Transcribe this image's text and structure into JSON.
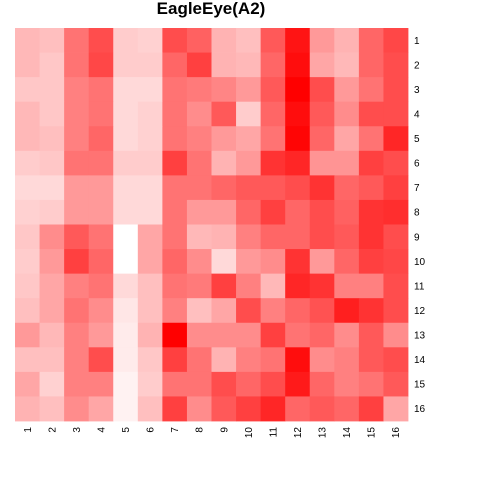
{
  "chart_data": {
    "type": "heatmap",
    "title": "EagleEye(A2)",
    "xlabel": "",
    "ylabel": "",
    "x_labels": [
      "1",
      "2",
      "3",
      "4",
      "5",
      "6",
      "7",
      "8",
      "9",
      "10",
      "11",
      "12",
      "13",
      "14",
      "15",
      "16"
    ],
    "y_labels": [
      "1",
      "2",
      "3",
      "4",
      "5",
      "6",
      "7",
      "8",
      "9",
      "10",
      "11",
      "12",
      "13",
      "14",
      "15",
      "16"
    ],
    "color_scale": {
      "low": "#ffffff",
      "high": "#ff0000"
    },
    "value_range": [
      0,
      1
    ],
    "values": [
      [
        0.28,
        0.25,
        0.55,
        0.7,
        0.2,
        0.18,
        0.7,
        0.62,
        0.3,
        0.25,
        0.65,
        0.92,
        0.4,
        0.3,
        0.6,
        0.72
      ],
      [
        0.28,
        0.22,
        0.55,
        0.72,
        0.2,
        0.2,
        0.6,
        0.75,
        0.3,
        0.28,
        0.6,
        0.95,
        0.35,
        0.28,
        0.6,
        0.7
      ],
      [
        0.22,
        0.22,
        0.5,
        0.55,
        0.15,
        0.15,
        0.55,
        0.52,
        0.48,
        0.4,
        0.65,
        1.0,
        0.7,
        0.4,
        0.55,
        0.7
      ],
      [
        0.28,
        0.22,
        0.5,
        0.55,
        0.15,
        0.18,
        0.55,
        0.45,
        0.65,
        0.2,
        0.6,
        0.95,
        0.65,
        0.45,
        0.7,
        0.7
      ],
      [
        0.28,
        0.25,
        0.5,
        0.6,
        0.15,
        0.18,
        0.55,
        0.5,
        0.4,
        0.35,
        0.55,
        0.98,
        0.6,
        0.35,
        0.55,
        0.85
      ],
      [
        0.2,
        0.22,
        0.55,
        0.55,
        0.2,
        0.2,
        0.75,
        0.55,
        0.3,
        0.4,
        0.8,
        0.85,
        0.42,
        0.42,
        0.75,
        0.7
      ],
      [
        0.15,
        0.15,
        0.4,
        0.4,
        0.15,
        0.15,
        0.55,
        0.55,
        0.6,
        0.65,
        0.65,
        0.7,
        0.8,
        0.6,
        0.65,
        0.75
      ],
      [
        0.18,
        0.2,
        0.4,
        0.4,
        0.15,
        0.15,
        0.55,
        0.4,
        0.4,
        0.6,
        0.75,
        0.6,
        0.7,
        0.62,
        0.8,
        0.82
      ],
      [
        0.22,
        0.45,
        0.65,
        0.55,
        0.0,
        0.35,
        0.55,
        0.28,
        0.3,
        0.5,
        0.6,
        0.6,
        0.7,
        0.65,
        0.8,
        0.7
      ],
      [
        0.2,
        0.4,
        0.75,
        0.6,
        0.0,
        0.35,
        0.6,
        0.45,
        0.15,
        0.4,
        0.45,
        0.8,
        0.4,
        0.6,
        0.75,
        0.72
      ],
      [
        0.22,
        0.35,
        0.5,
        0.55,
        0.15,
        0.25,
        0.55,
        0.52,
        0.75,
        0.5,
        0.28,
        0.85,
        0.8,
        0.5,
        0.5,
        0.7
      ],
      [
        0.25,
        0.35,
        0.55,
        0.45,
        0.1,
        0.25,
        0.5,
        0.25,
        0.35,
        0.7,
        0.5,
        0.6,
        0.68,
        0.88,
        0.8,
        0.7
      ],
      [
        0.4,
        0.28,
        0.5,
        0.4,
        0.08,
        0.3,
        1.0,
        0.45,
        0.45,
        0.45,
        0.75,
        0.55,
        0.6,
        0.45,
        0.65,
        0.45
      ],
      [
        0.25,
        0.25,
        0.5,
        0.7,
        0.08,
        0.22,
        0.75,
        0.55,
        0.3,
        0.5,
        0.55,
        0.95,
        0.45,
        0.5,
        0.65,
        0.7
      ],
      [
        0.35,
        0.18,
        0.5,
        0.5,
        0.05,
        0.2,
        0.55,
        0.55,
        0.7,
        0.6,
        0.7,
        0.9,
        0.6,
        0.5,
        0.55,
        0.65
      ],
      [
        0.3,
        0.25,
        0.45,
        0.35,
        0.05,
        0.25,
        0.75,
        0.45,
        0.65,
        0.75,
        0.85,
        0.6,
        0.65,
        0.6,
        0.75,
        0.35
      ]
    ]
  }
}
